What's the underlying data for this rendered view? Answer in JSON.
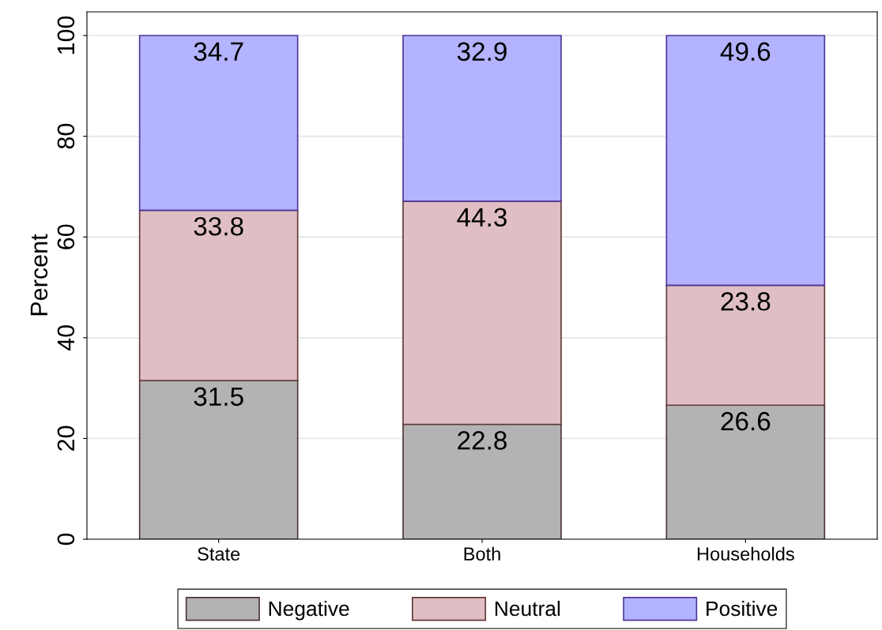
{
  "chart_data": {
    "type": "bar",
    "stacked": true,
    "ylabel": "Percent",
    "categories": [
      "State",
      "Both",
      "Households"
    ],
    "series": [
      {
        "name": "Negative",
        "color": "#b3b3b3",
        "values": [
          31.5,
          22.8,
          26.6
        ]
      },
      {
        "name": "Neutral",
        "color": "#dfbfc3",
        "values": [
          33.8,
          44.3,
          23.8
        ]
      },
      {
        "name": "Positive",
        "color": "#b3b3ff",
        "values": [
          34.7,
          32.9,
          49.6
        ]
      }
    ],
    "ylim": [
      0,
      104.7
    ],
    "yticks": [
      0,
      20,
      40,
      60,
      80,
      100
    ],
    "grid": "y",
    "legend": "bottom",
    "data_labels": true
  }
}
